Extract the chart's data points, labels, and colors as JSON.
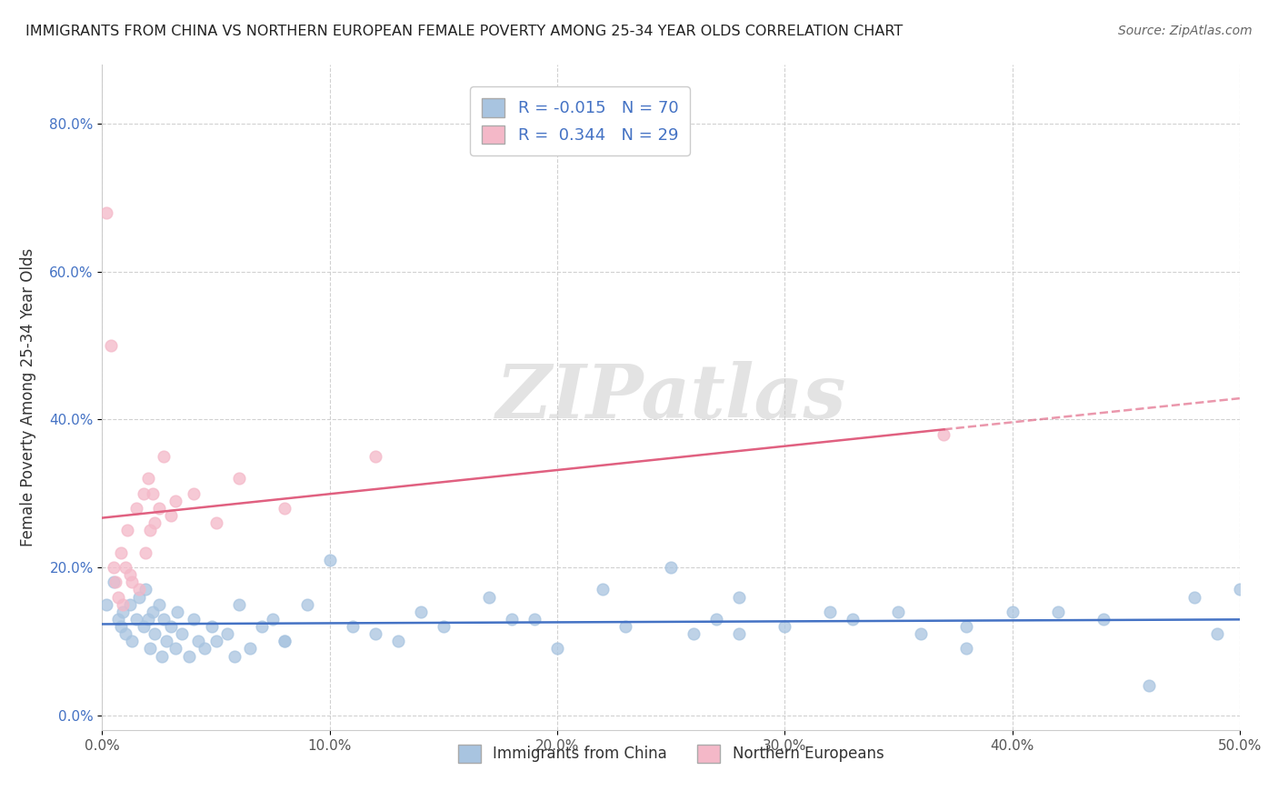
{
  "title": "IMMIGRANTS FROM CHINA VS NORTHERN EUROPEAN FEMALE POVERTY AMONG 25-34 YEAR OLDS CORRELATION CHART",
  "source": "Source: ZipAtlas.com",
  "ylabel": "Female Poverty Among 25-34 Year Olds",
  "xlim": [
    0.0,
    0.5
  ],
  "ylim": [
    -0.02,
    0.88
  ],
  "xticklabels": [
    "0.0%",
    "10.0%",
    "20.0%",
    "30.0%",
    "40.0%",
    "50.0%"
  ],
  "xtick_vals": [
    0.0,
    0.1,
    0.2,
    0.3,
    0.4,
    0.5
  ],
  "yticklabels": [
    "0.0%",
    "20.0%",
    "40.0%",
    "60.0%",
    "80.0%"
  ],
  "ytick_vals": [
    0.0,
    0.2,
    0.4,
    0.6,
    0.8
  ],
  "legend_r1": "-0.015",
  "legend_n1": "70",
  "legend_r2": "0.344",
  "legend_n2": "29",
  "china_color": "#a8c4e0",
  "northern_color": "#f4b8c8",
  "china_line_color": "#4472c4",
  "northern_line_color": "#e06080",
  "watermark": "ZIPatlas",
  "china_x": [
    0.002,
    0.005,
    0.007,
    0.008,
    0.009,
    0.01,
    0.012,
    0.013,
    0.015,
    0.016,
    0.018,
    0.019,
    0.02,
    0.021,
    0.022,
    0.023,
    0.025,
    0.026,
    0.027,
    0.028,
    0.03,
    0.032,
    0.033,
    0.035,
    0.038,
    0.04,
    0.042,
    0.045,
    0.048,
    0.05,
    0.055,
    0.058,
    0.06,
    0.065,
    0.07,
    0.075,
    0.08,
    0.09,
    0.1,
    0.11,
    0.12,
    0.13,
    0.14,
    0.15,
    0.17,
    0.19,
    0.2,
    0.22,
    0.23,
    0.25,
    0.26,
    0.27,
    0.28,
    0.3,
    0.32,
    0.33,
    0.35,
    0.36,
    0.38,
    0.4,
    0.42,
    0.44,
    0.46,
    0.48,
    0.49,
    0.5,
    0.38,
    0.28,
    0.18,
    0.08
  ],
  "china_y": [
    0.15,
    0.18,
    0.13,
    0.12,
    0.14,
    0.11,
    0.15,
    0.1,
    0.13,
    0.16,
    0.12,
    0.17,
    0.13,
    0.09,
    0.14,
    0.11,
    0.15,
    0.08,
    0.13,
    0.1,
    0.12,
    0.09,
    0.14,
    0.11,
    0.08,
    0.13,
    0.1,
    0.09,
    0.12,
    0.1,
    0.11,
    0.08,
    0.15,
    0.09,
    0.12,
    0.13,
    0.1,
    0.15,
    0.21,
    0.12,
    0.11,
    0.1,
    0.14,
    0.12,
    0.16,
    0.13,
    0.09,
    0.17,
    0.12,
    0.2,
    0.11,
    0.13,
    0.11,
    0.12,
    0.14,
    0.13,
    0.14,
    0.11,
    0.12,
    0.14,
    0.14,
    0.13,
    0.04,
    0.16,
    0.11,
    0.17,
    0.09,
    0.16,
    0.13,
    0.1
  ],
  "northern_x": [
    0.002,
    0.004,
    0.005,
    0.006,
    0.007,
    0.008,
    0.009,
    0.01,
    0.011,
    0.012,
    0.013,
    0.015,
    0.016,
    0.018,
    0.019,
    0.02,
    0.021,
    0.022,
    0.023,
    0.025,
    0.027,
    0.03,
    0.032,
    0.04,
    0.05,
    0.06,
    0.08,
    0.12,
    0.37
  ],
  "northern_y": [
    0.68,
    0.5,
    0.2,
    0.18,
    0.16,
    0.22,
    0.15,
    0.2,
    0.25,
    0.19,
    0.18,
    0.28,
    0.17,
    0.3,
    0.22,
    0.32,
    0.25,
    0.3,
    0.26,
    0.28,
    0.35,
    0.27,
    0.29,
    0.3,
    0.26,
    0.32,
    0.28,
    0.35,
    0.38
  ]
}
